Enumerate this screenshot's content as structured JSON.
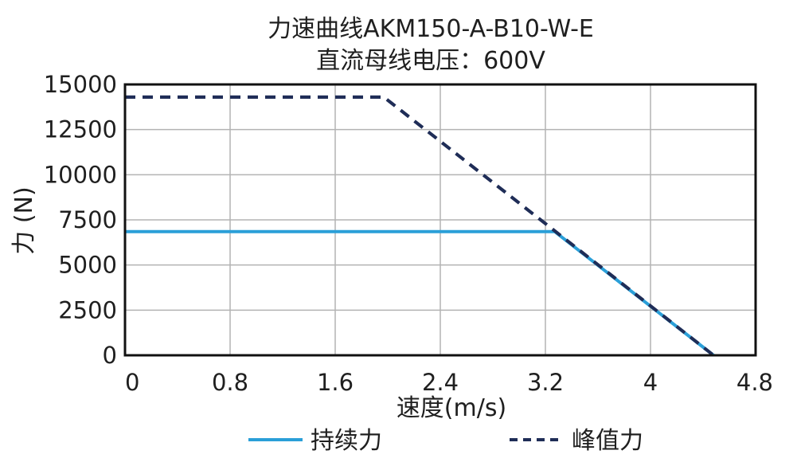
{
  "chart_data": {
    "type": "line",
    "title": "力速曲线AKM150-A-B10-W-E",
    "subtitle": "直流母线电压：600V",
    "xlabel": "速度(m/s)",
    "ylabel": "力 (N)",
    "xlim": [
      0,
      4.8
    ],
    "ylim": [
      0,
      15000
    ],
    "xticks": [
      0,
      0.8,
      1.6,
      2.4,
      3.2,
      4,
      4.8
    ],
    "xtick_labels": [
      "0",
      "0.8",
      "1.6",
      "2.4",
      "3.2",
      "4",
      "4.8"
    ],
    "yticks": [
      0,
      2500,
      5000,
      7500,
      10000,
      12500,
      15000
    ],
    "ytick_labels": [
      "0",
      "2500",
      "5000",
      "7500",
      "10000",
      "12500",
      "15000"
    ],
    "grid": true,
    "legend_position": "bottom",
    "series": [
      {
        "name": "持续力",
        "color": "#2a9fd8",
        "style": "solid",
        "x": [
          0,
          3.27,
          4.48
        ],
        "y": [
          6850,
          6850,
          0
        ]
      },
      {
        "name": "峰值力",
        "color": "#1f2d57",
        "style": "dashed",
        "x": [
          0,
          1.97,
          4.48
        ],
        "y": [
          14300,
          14300,
          0
        ]
      }
    ]
  }
}
